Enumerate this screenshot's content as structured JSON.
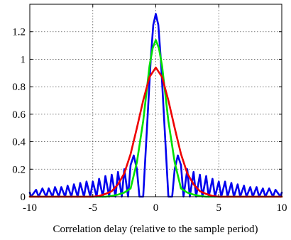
{
  "chart_data": {
    "type": "line",
    "title": "",
    "xlabel": "Correlation delay (relative to the sample period)",
    "ylabel": "",
    "xlim": [
      -10,
      10
    ],
    "ylim": [
      0,
      1.4
    ],
    "grid": "dotted",
    "legend": "none",
    "x_ticks": [
      -10,
      -5,
      0,
      5,
      10
    ],
    "x_tick_labels": [
      "-10",
      "-5",
      "0",
      "5",
      "10"
    ],
    "y_ticks": [
      0,
      0.2,
      0.4,
      0.6,
      0.8,
      1,
      1.2
    ],
    "y_tick_labels": [
      "0",
      "0.2",
      "0.4",
      "0.6",
      "0.8",
      "1",
      "1.2"
    ],
    "series": [
      {
        "color": "#0000ee",
        "x": [
          -10,
          -9.9,
          -9.5,
          -9.3,
          -9.0,
          -8.7,
          -8.5,
          -8.2,
          -8.0,
          -7.7,
          -7.5,
          -7.2,
          -7.0,
          -6.7,
          -6.5,
          -6.2,
          -6.0,
          -5.7,
          -5.5,
          -5.2,
          -5.0,
          -4.7,
          -4.5,
          -4.2,
          -4.0,
          -3.7,
          -3.5,
          -3.2,
          -3.0,
          -2.7,
          -2.5,
          -2.2,
          -2.0,
          -1.75,
          -1.5,
          -1.3,
          -1.0,
          -0.7,
          -0.4,
          -0.2,
          0.0,
          0.2,
          0.4,
          0.7,
          1.0,
          1.3,
          1.5,
          1.75,
          2.0,
          2.2,
          2.5,
          2.7,
          3.0,
          3.2,
          3.5,
          3.7,
          4.0,
          4.2,
          4.5,
          4.7,
          5.0,
          5.2,
          5.5,
          5.7,
          6.0,
          6.2,
          6.5,
          6.7,
          7.0,
          7.2,
          7.5,
          7.7,
          8.0,
          8.2,
          8.5,
          8.7,
          9.0,
          9.3,
          9.5,
          9.9,
          10
        ],
        "y": [
          0.03,
          0.0,
          0.05,
          0.0,
          0.06,
          0.0,
          0.06,
          0.0,
          0.07,
          0.0,
          0.07,
          0.0,
          0.08,
          0.0,
          0.09,
          0.0,
          0.1,
          0.0,
          0.11,
          0.0,
          0.11,
          0.0,
          0.13,
          0.0,
          0.15,
          0.0,
          0.16,
          0.0,
          0.18,
          0.0,
          0.2,
          0.0,
          0.23,
          0.3,
          0.2,
          0.0,
          0.0,
          0.5,
          1.0,
          1.25,
          1.33,
          1.25,
          1.0,
          0.5,
          0.0,
          0.0,
          0.2,
          0.3,
          0.23,
          0.0,
          0.2,
          0.0,
          0.18,
          0.0,
          0.16,
          0.0,
          0.15,
          0.0,
          0.13,
          0.0,
          0.11,
          0.0,
          0.11,
          0.0,
          0.1,
          0.0,
          0.09,
          0.0,
          0.08,
          0.0,
          0.07,
          0.0,
          0.07,
          0.0,
          0.06,
          0.0,
          0.06,
          0.0,
          0.05,
          0.0,
          0.03
        ]
      },
      {
        "color": "#00e000",
        "x": [
          -10,
          -5,
          -4,
          -3.5,
          -3,
          -2.5,
          -2,
          -1.5,
          -1.0,
          -0.5,
          -0.25,
          0.0,
          0.25,
          0.5,
          1.0,
          1.5,
          2,
          2.5,
          3,
          3.5,
          4,
          5,
          10
        ],
        "y": [
          0.0,
          0.0,
          0.0,
          0.005,
          0.015,
          0.03,
          0.06,
          0.25,
          0.55,
          0.95,
          1.08,
          1.14,
          1.08,
          0.95,
          0.55,
          0.25,
          0.06,
          0.03,
          0.015,
          0.005,
          0.0,
          0.0,
          0.0
        ]
      },
      {
        "color": "#ee0000",
        "x": [
          -10,
          -5,
          -4.5,
          -4,
          -3.5,
          -3,
          -2.5,
          -2,
          -1.5,
          -1,
          -0.5,
          0,
          0.5,
          1,
          1.5,
          2,
          2.5,
          3,
          3.5,
          4,
          4.5,
          5,
          10
        ],
        "y": [
          0.0,
          0.0,
          0.005,
          0.02,
          0.04,
          0.09,
          0.17,
          0.31,
          0.5,
          0.7,
          0.87,
          0.94,
          0.87,
          0.7,
          0.5,
          0.31,
          0.17,
          0.09,
          0.04,
          0.02,
          0.005,
          0.0,
          0.0
        ]
      }
    ]
  }
}
